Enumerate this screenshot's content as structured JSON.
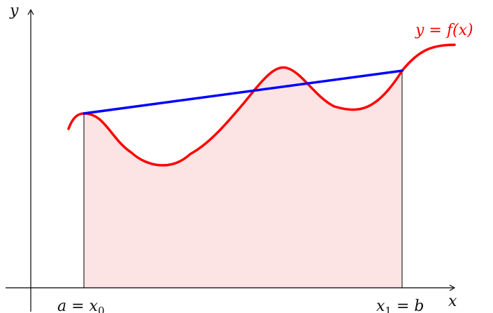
{
  "labels": {
    "y_axis": "y",
    "x_axis": "x",
    "curve": "y = f(x)",
    "left_bound": "a = x",
    "left_bound_sub": "0",
    "right_bound": "x",
    "right_bound_sub": "1",
    "right_bound_tail": " = b"
  },
  "colors": {
    "curve": "#ff0000",
    "chord": "#0000ff",
    "fill": "#fde4e4",
    "axes": "#000000"
  }
}
